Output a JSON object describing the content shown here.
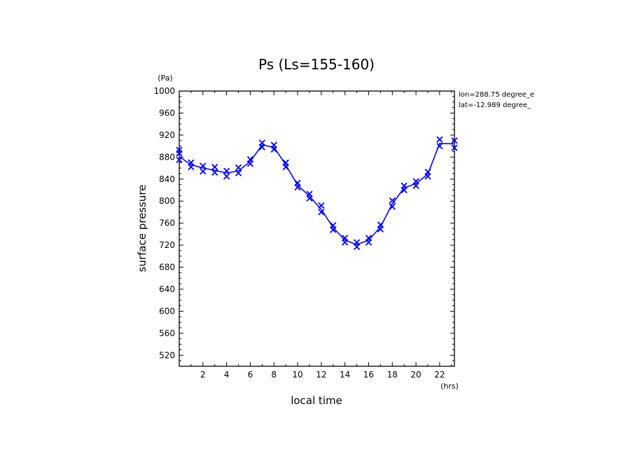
{
  "chart_data": {
    "type": "line",
    "title": "Ps (Ls=155-160)",
    "xlabel": "local time",
    "ylabel": "surface pressure",
    "x_unit": "(hrs)",
    "y_unit": "(Pa)",
    "xlim": [
      0,
      23.25
    ],
    "ylim": [
      500,
      1000
    ],
    "xticks": [
      2,
      4,
      6,
      8,
      10,
      12,
      14,
      16,
      18,
      20,
      22
    ],
    "yticks": [
      520,
      560,
      600,
      640,
      680,
      720,
      760,
      800,
      840,
      880,
      920,
      960,
      1000
    ],
    "annotations": [
      "lon=288.75 degree_e",
      "lat=-12.989 degree_"
    ],
    "grid": false,
    "line_color": "#0000ff",
    "series": [
      {
        "x": [
          0.0,
          1.0,
          2.0,
          3.0,
          4.0,
          5.0,
          6.0,
          7.0,
          8.0,
          9.0,
          10.0,
          11.0,
          12.0,
          13.0,
          14.0,
          15.0,
          16.0,
          17.0,
          18.0,
          19.0,
          20.0,
          21.0,
          22.0,
          23.25
        ],
        "y": [
          881,
          866,
          860,
          856,
          851,
          855,
          872,
          902,
          898,
          866,
          829,
          809,
          785,
          752,
          729,
          721,
          729,
          753,
          795,
          824,
          832,
          849,
          905,
          904
        ],
        "markers_y": [
          [
            875,
            887,
            893
          ],
          [
            862,
            870
          ],
          [
            854,
            864
          ],
          [
            852,
            862
          ],
          [
            845,
            855
          ],
          [
            851,
            861
          ],
          [
            868,
            876
          ],
          [
            898,
            906
          ],
          [
            894,
            902
          ],
          [
            862,
            870
          ],
          [
            825,
            833
          ],
          [
            805,
            813
          ],
          [
            780,
            792
          ],
          [
            748,
            756
          ],
          [
            725,
            733
          ],
          [
            717,
            725
          ],
          [
            725,
            733
          ],
          [
            749,
            757
          ],
          [
            790,
            801
          ],
          [
            820,
            828
          ],
          [
            828,
            836
          ],
          [
            845,
            853
          ],
          [
            900,
            912
          ],
          [
            897,
            910
          ]
        ]
      }
    ]
  }
}
